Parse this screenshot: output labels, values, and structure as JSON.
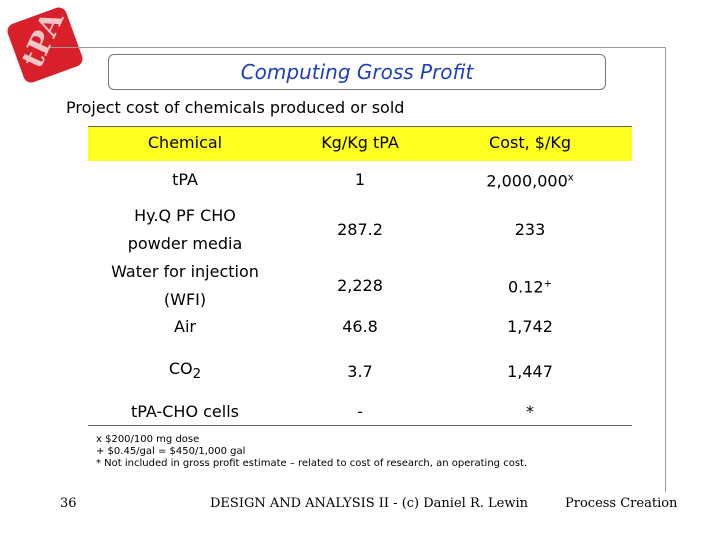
{
  "logo": {
    "text": "tPA"
  },
  "header": {
    "title": "Computing Gross Profit",
    "subtitle": "Project cost of chemicals produced or sold"
  },
  "table": {
    "columns": [
      "Chemical",
      "Kg/Kg tPA",
      "Cost, $/Kg"
    ],
    "rows": [
      {
        "chemical": "tPA",
        "kg": "1",
        "cost": "2,000,000",
        "cost_sup": "x"
      },
      {
        "chemical": "Hy.Q PF CHO powder media",
        "kg": "287.2",
        "cost": "233"
      },
      {
        "chemical": "Water for injection (WFI)",
        "kg": "2,228",
        "cost": "0.12",
        "cost_sup": "+"
      },
      {
        "chemical": "Air",
        "kg": "46.8",
        "cost": "1,742"
      },
      {
        "chemical": "CO",
        "chemical_sub": "2",
        "kg": "3.7",
        "cost": "1,447"
      },
      {
        "chemical": "tPA-CHO cells",
        "kg": "-",
        "cost": "*"
      }
    ]
  },
  "footnotes": [
    "x $200/100 mg dose",
    "+ $0.45/gal = $450/1,000 gal",
    "* Not included in gross profit estimate – related to cost of research, an operating cost."
  ],
  "footer": {
    "page": "36",
    "center": "DESIGN AND ANALYSIS II - (c) Daniel R. Lewin",
    "right": "Process Creation"
  }
}
